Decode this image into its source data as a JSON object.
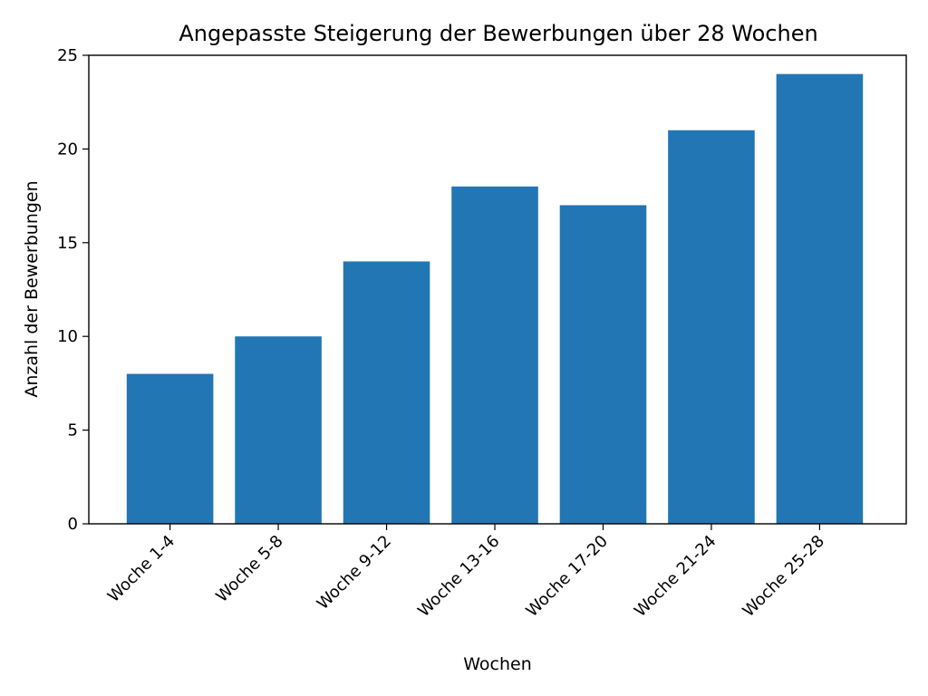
{
  "chart_data": {
    "type": "bar",
    "title": "Angepasste Steigerung der Bewerbungen über 28 Wochen",
    "xlabel": "Wochen",
    "ylabel": "Anzahl der Bewerbungen",
    "categories": [
      "Woche 1-4",
      "Woche 5-8",
      "Woche 9-12",
      "Woche 13-16",
      "Woche 17-20",
      "Woche 21-24",
      "Woche 25-28"
    ],
    "values": [
      8,
      10,
      14,
      18,
      17,
      21,
      24
    ],
    "ylim": [
      0,
      25
    ],
    "yticks": [
      0,
      5,
      10,
      15,
      20,
      25
    ],
    "grid": false,
    "legend": "none",
    "bar_color": "#2276b3"
  }
}
